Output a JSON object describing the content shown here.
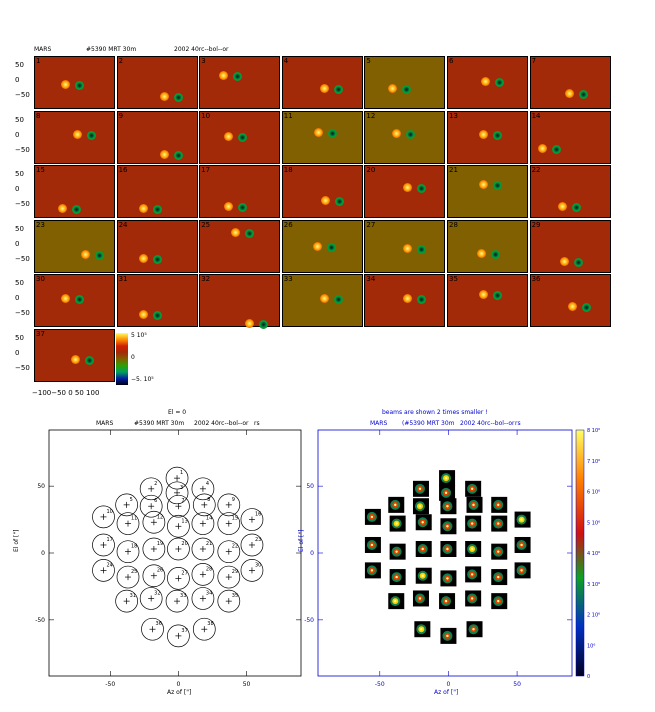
{
  "header": {
    "left": "MARS",
    "middle": "#5390  MRT 30m",
    "right": "2002  40rc--bol--or"
  },
  "grid": {
    "panels": [
      {
        "n": "1",
        "bg": "#a22a08"
      },
      {
        "n": "2",
        "bg": "#a22a08"
      },
      {
        "n": "3",
        "bg": "#a22a08"
      },
      {
        "n": "4",
        "bg": "#a22a08"
      },
      {
        "n": "5",
        "bg": "#806000"
      },
      {
        "n": "6",
        "bg": "#a22a08"
      },
      {
        "n": "7",
        "bg": "#a22a08"
      },
      {
        "n": "8",
        "bg": "#a22a08"
      },
      {
        "n": "9",
        "bg": "#a22a08"
      },
      {
        "n": "10",
        "bg": "#a22a08"
      },
      {
        "n": "11",
        "bg": "#806000"
      },
      {
        "n": "12",
        "bg": "#806000"
      },
      {
        "n": "13",
        "bg": "#a22a08"
      },
      {
        "n": "14",
        "bg": "#a22a08"
      },
      {
        "n": "15",
        "bg": "#a22a08"
      },
      {
        "n": "16",
        "bg": "#a22a08"
      },
      {
        "n": "17",
        "bg": "#a22a08"
      },
      {
        "n": "18",
        "bg": "#a22a08"
      },
      {
        "n": "20",
        "bg": "#a22a08"
      },
      {
        "n": "21",
        "bg": "#806000"
      },
      {
        "n": "22",
        "bg": "#a22a08"
      },
      {
        "n": "23",
        "bg": "#806000"
      },
      {
        "n": "24",
        "bg": "#a22a08"
      },
      {
        "n": "25",
        "bg": "#a22a08"
      },
      {
        "n": "26",
        "bg": "#806000"
      },
      {
        "n": "27",
        "bg": "#806000"
      },
      {
        "n": "28",
        "bg": "#806000"
      },
      {
        "n": "29",
        "bg": "#a22a08"
      },
      {
        "n": "30",
        "bg": "#a22a08"
      },
      {
        "n": "31",
        "bg": "#a22a08"
      },
      {
        "n": "32",
        "bg": "#a22a08"
      },
      {
        "n": "33",
        "bg": "#806000"
      },
      {
        "n": "34",
        "bg": "#a22a08"
      },
      {
        "n": "35",
        "bg": "#a22a08"
      },
      {
        "n": "36",
        "bg": "#a22a08"
      },
      {
        "n": "37",
        "bg": "#a22a08"
      }
    ],
    "y_ticks": [
      "50",
      "0",
      "−50"
    ],
    "x_ticks": "−100−50  0   50  100",
    "colorbar": {
      "top": "5 10⁵",
      "mid": "0",
      "bottom": "−5. 10⁵"
    }
  },
  "left_plot": {
    "title": "El = 0",
    "sub_left": "MARS",
    "sub_mid": "#5390  MRT 30m",
    "sub_right": "2002  40rc--bol--or",
    "sub_tail": "rs",
    "xlabel": "Az of [\"]",
    "ylabel": "El of [\"]",
    "xticks": [
      "-50",
      "0",
      "50"
    ],
    "yticks": [
      "50",
      "0",
      "-50"
    ]
  },
  "right_plot": {
    "title": "beams are shown 2 times smaller !",
    "sub_left": "MARS",
    "sub_mid": "(#5390  MRT 30m",
    "sub_right": "2002  40rc--bol--or",
    "sub_tail": "rs",
    "xlabel": "Az of [\"]",
    "ylabel": "El of [\"]",
    "xticks": [
      "-50",
      "0",
      "50"
    ],
    "yticks": [
      "50",
      "0",
      "-50"
    ],
    "cbar_ticks": [
      "8 10⁶",
      "7 10⁶",
      "6 10⁶",
      "5 10⁶",
      "4 10⁶",
      "3 10⁶",
      "2 10⁶",
      "10⁶",
      "0"
    ]
  },
  "chart_data": {
    "type": "scatter",
    "title": "El = 0",
    "xlabel": "Az of [\"]",
    "ylabel": "El of [\"]",
    "xlim": [
      -95,
      90
    ],
    "ylim": [
      -92,
      92
    ],
    "points": [
      {
        "label": "1",
        "x": -1,
        "y": 56
      },
      {
        "label": "2",
        "x": -20,
        "y": 48
      },
      {
        "label": "3",
        "x": -1,
        "y": 45
      },
      {
        "label": "4",
        "x": 18,
        "y": 48
      },
      {
        "label": "5",
        "x": -38,
        "y": 36
      },
      {
        "label": "6",
        "x": -20,
        "y": 35
      },
      {
        "label": "7",
        "x": 0,
        "y": 35
      },
      {
        "label": "8",
        "x": 19,
        "y": 36
      },
      {
        "label": "9",
        "x": 37,
        "y": 36
      },
      {
        "label": "10",
        "x": -55,
        "y": 27
      },
      {
        "label": "11",
        "x": -37,
        "y": 22
      },
      {
        "label": "12",
        "x": -18,
        "y": 23
      },
      {
        "label": "13",
        "x": 0,
        "y": 20
      },
      {
        "label": "14",
        "x": 18,
        "y": 22
      },
      {
        "label": "15",
        "x": 37,
        "y": 22
      },
      {
        "label": "16",
        "x": 54,
        "y": 25
      },
      {
        "label": "17",
        "x": -55,
        "y": 6
      },
      {
        "label": "18",
        "x": -37,
        "y": 1
      },
      {
        "label": "19",
        "x": -18,
        "y": 3
      },
      {
        "label": "20",
        "x": 0,
        "y": 3
      },
      {
        "label": "21",
        "x": 18,
        "y": 3
      },
      {
        "label": "22",
        "x": 37,
        "y": 1
      },
      {
        "label": "23",
        "x": 54,
        "y": 6
      },
      {
        "label": "24",
        "x": -55,
        "y": -13
      },
      {
        "label": "25",
        "x": -37,
        "y": -18
      },
      {
        "label": "26",
        "x": -18,
        "y": -17
      },
      {
        "label": "27",
        "x": 0,
        "y": -19
      },
      {
        "label": "28",
        "x": 18,
        "y": -16
      },
      {
        "label": "29",
        "x": 37,
        "y": -18
      },
      {
        "label": "30",
        "x": 54,
        "y": -13
      },
      {
        "label": "31",
        "x": -38,
        "y": -36
      },
      {
        "label": "32",
        "x": -20,
        "y": -34
      },
      {
        "label": "33",
        "x": -1,
        "y": -36
      },
      {
        "label": "34",
        "x": 18,
        "y": -34
      },
      {
        "label": "35",
        "x": 37,
        "y": -36
      },
      {
        "label": "36",
        "x": -19,
        "y": -57
      },
      {
        "label": "37",
        "x": 0,
        "y": -62
      },
      {
        "label": "38",
        "x": 19,
        "y": -57
      }
    ]
  }
}
